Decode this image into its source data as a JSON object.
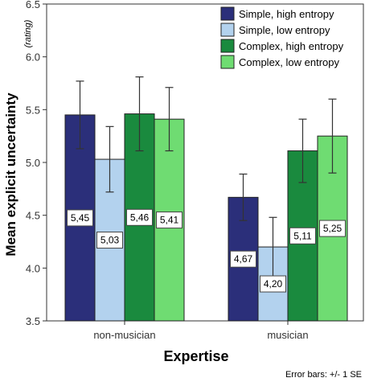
{
  "chart_data": {
    "type": "bar",
    "xlabel": "Expertise",
    "ylabel": "Mean explicit uncertainty",
    "ylabel_unit": "(rating)",
    "ylim": [
      3.5,
      6.5
    ],
    "yticks": [
      "3.5",
      "4.0",
      "4.5",
      "5.0",
      "5.5",
      "6.0",
      "6.5"
    ],
    "categories": [
      "non-musician",
      "musician"
    ],
    "legend_position": "top-right",
    "series": [
      {
        "name": "Simple, high entropy",
        "color": "#2b2f7a",
        "values": [
          5.45,
          4.67
        ],
        "labels": [
          "5,45",
          "4,67"
        ],
        "err": [
          0.32,
          0.22
        ]
      },
      {
        "name": "Simple, low entropy",
        "color": "#b3d2ee",
        "values": [
          5.03,
          4.2
        ],
        "labels": [
          "5,03",
          "4,20"
        ],
        "err": [
          0.31,
          0.28
        ]
      },
      {
        "name": "Complex, high entropy",
        "color": "#1a8a3e",
        "values": [
          5.46,
          5.11
        ],
        "labels": [
          "5,46",
          "5,11"
        ],
        "err": [
          0.35,
          0.3
        ]
      },
      {
        "name": "Complex, low entropy",
        "color": "#6fdc72",
        "values": [
          5.41,
          5.25
        ],
        "labels": [
          "5,41",
          "5,25"
        ],
        "err": [
          0.3,
          0.35
        ]
      }
    ],
    "error_note": "Error bars: +/- 1 SE"
  }
}
